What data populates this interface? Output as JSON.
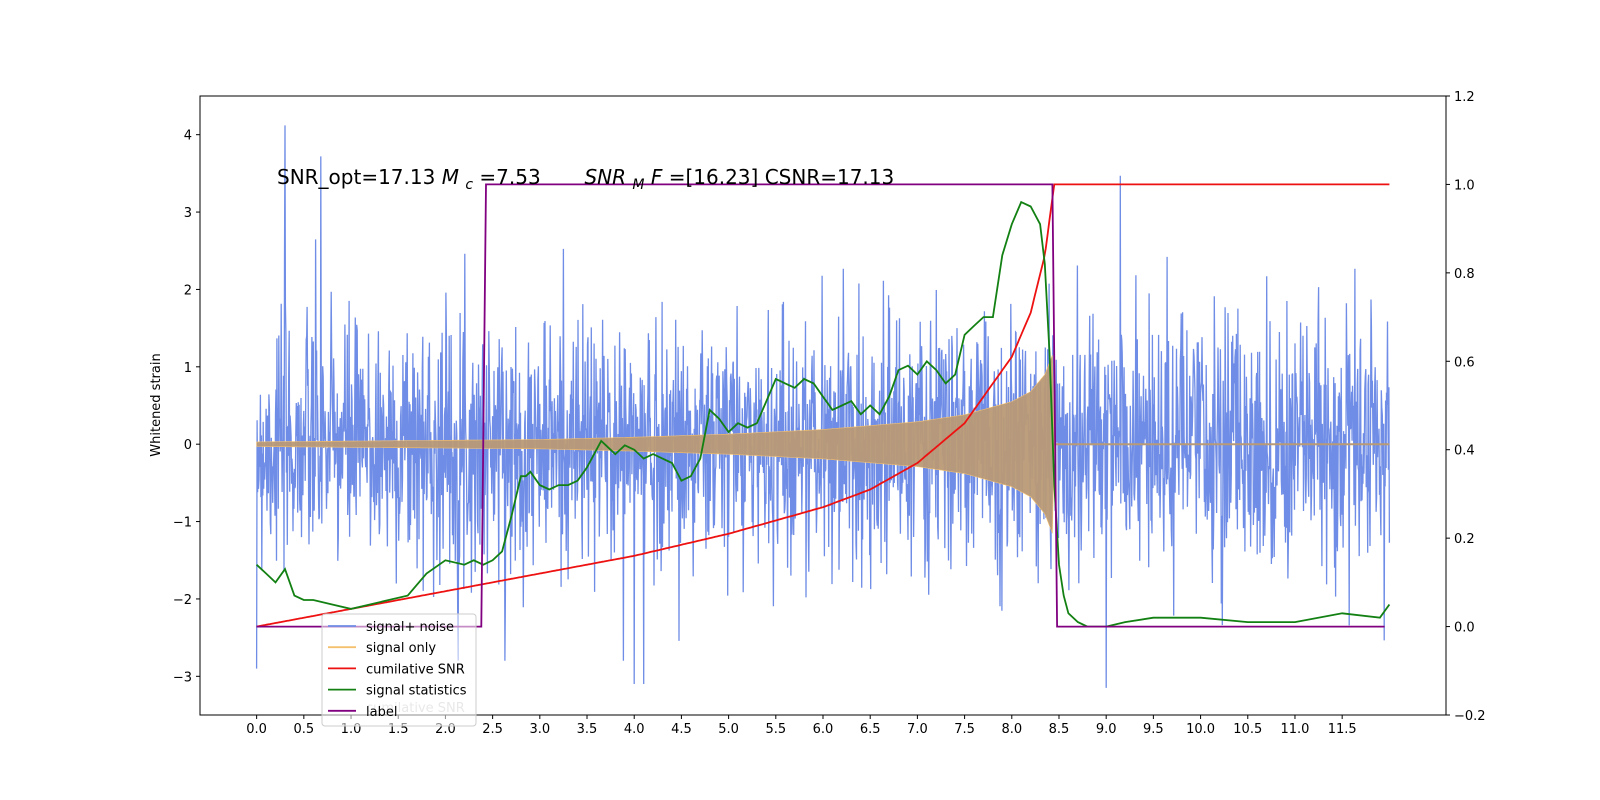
{
  "chart_data": {
    "type": "line",
    "annotation": "SNR_opt=17.13 $M_c$=7.53    $SNR_MF$=[16.23] CSNR=17.13",
    "annotation_parts": {
      "p1": "SNR_opt=17.13 ",
      "p2": "M",
      "p3": "c",
      "p4": "=7.53    ",
      "p5": "SNR",
      "p6": "M",
      "p7": "F",
      "p8": "=[16.23] CSNR=17.13"
    },
    "ylabel": "Whitened strain",
    "xlim": [
      -0.6,
      12.6
    ],
    "ylim": [
      -3.5,
      4.5
    ],
    "y2lim": [
      -0.2,
      1.2
    ],
    "x_ticks": [
      "0.0",
      "0.5",
      "1.0",
      "1.5",
      "2.0",
      "2.5",
      "3.0",
      "3.5",
      "4.0",
      "4.5",
      "5.0",
      "5.5",
      "6.0",
      "6.5",
      "7.0",
      "7.5",
      "8.0",
      "8.5",
      "9.0",
      "9.5",
      "10.0",
      "10.5",
      "11.0",
      "11.5"
    ],
    "y_ticks": [
      "−3",
      "−2",
      "−1",
      "0",
      "1",
      "2",
      "3",
      "4"
    ],
    "y2_ticks": [
      "−0.2",
      "0.0",
      "0.2",
      "0.4",
      "0.6",
      "0.8",
      "1.0",
      "1.2"
    ],
    "grid": false,
    "legend_position": "lower-left",
    "legend": [
      "signal+ noise",
      "signal only",
      "cumilative SNR",
      "signal statistics",
      "label"
    ],
    "legend_overlap_text": "cumilative SNR",
    "colors": {
      "signal_noise": "#6f8de6",
      "signal_only": "#f5c06e",
      "signal_overlap": "#b99a76",
      "cumulative_snr": "#ee1111",
      "signal_statistics": "#128012",
      "label": "#800080"
    },
    "series": [
      {
        "name": "signal+ noise",
        "axis": "left",
        "x_range": [
          0.0,
          12.0
        ],
        "typical_envelope": [
          -1.7,
          1.7
        ],
        "peaks": [
          {
            "x": 0.3,
            "y": 4.12
          },
          {
            "x": 0.68,
            "y": 3.72
          },
          {
            "x": 9.15,
            "y": 3.47
          },
          {
            "x": 4.0,
            "y": -3.1
          },
          {
            "x": 4.1,
            "y": -3.1
          },
          {
            "x": 9.0,
            "y": -3.15
          },
          {
            "x": 0.0,
            "y": -2.9
          }
        ]
      },
      {
        "name": "signal only",
        "axis": "left",
        "x": [
          0.0,
          1.0,
          2.0,
          3.0,
          4.0,
          5.0,
          6.0,
          7.0,
          7.5,
          8.0,
          8.2,
          8.35,
          8.43,
          8.45
        ],
        "envelope": [
          0.03,
          0.04,
          0.05,
          0.06,
          0.09,
          0.13,
          0.19,
          0.29,
          0.38,
          0.55,
          0.68,
          0.9,
          1.15,
          0.0
        ]
      },
      {
        "name": "cumilative SNR",
        "axis": "right",
        "x": [
          0.0,
          0.5,
          1.0,
          2.0,
          3.0,
          4.0,
          5.0,
          6.0,
          6.5,
          7.0,
          7.5,
          8.0,
          8.2,
          8.35,
          8.45,
          12.0
        ],
        "values": [
          0.0,
          0.02,
          0.04,
          0.08,
          0.12,
          0.16,
          0.21,
          0.27,
          0.31,
          0.37,
          0.46,
          0.61,
          0.71,
          0.84,
          1.0,
          1.0
        ]
      },
      {
        "name": "signal statistics",
        "axis": "right",
        "x": [
          0.0,
          0.1,
          0.2,
          0.3,
          0.4,
          0.5,
          0.6,
          0.8,
          1.0,
          1.2,
          1.4,
          1.6,
          1.8,
          2.0,
          2.2,
          2.3,
          2.4,
          2.5,
          2.6,
          2.7,
          2.8,
          2.85,
          2.9,
          3.0,
          3.1,
          3.2,
          3.3,
          3.4,
          3.5,
          3.6,
          3.65,
          3.7,
          3.8,
          3.9,
          4.0,
          4.1,
          4.2,
          4.3,
          4.4,
          4.5,
          4.6,
          4.7,
          4.8,
          4.9,
          5.0,
          5.1,
          5.2,
          5.3,
          5.4,
          5.5,
          5.6,
          5.7,
          5.8,
          5.9,
          6.0,
          6.1,
          6.2,
          6.3,
          6.4,
          6.5,
          6.6,
          6.7,
          6.8,
          6.9,
          7.0,
          7.1,
          7.2,
          7.3,
          7.4,
          7.5,
          7.6,
          7.7,
          7.8,
          7.9,
          8.0,
          8.1,
          8.2,
          8.3,
          8.35,
          8.4,
          8.45,
          8.5,
          8.55,
          8.6,
          8.7,
          8.8,
          9.0,
          9.2,
          9.5,
          10.0,
          10.5,
          11.0,
          11.5,
          11.9,
          12.0
        ],
        "values": [
          0.14,
          0.12,
          0.1,
          0.13,
          0.07,
          0.06,
          0.06,
          0.05,
          0.04,
          0.05,
          0.06,
          0.07,
          0.12,
          0.15,
          0.14,
          0.15,
          0.14,
          0.15,
          0.17,
          0.25,
          0.34,
          0.34,
          0.35,
          0.32,
          0.31,
          0.32,
          0.32,
          0.33,
          0.36,
          0.4,
          0.42,
          0.41,
          0.39,
          0.41,
          0.4,
          0.38,
          0.39,
          0.38,
          0.37,
          0.33,
          0.34,
          0.38,
          0.49,
          0.47,
          0.44,
          0.46,
          0.45,
          0.46,
          0.51,
          0.56,
          0.55,
          0.54,
          0.56,
          0.55,
          0.52,
          0.49,
          0.5,
          0.51,
          0.48,
          0.5,
          0.48,
          0.52,
          0.58,
          0.59,
          0.57,
          0.6,
          0.58,
          0.55,
          0.57,
          0.66,
          0.68,
          0.7,
          0.7,
          0.84,
          0.91,
          0.96,
          0.95,
          0.91,
          0.82,
          0.62,
          0.32,
          0.14,
          0.07,
          0.03,
          0.01,
          0.0,
          0.0,
          0.01,
          0.02,
          0.02,
          0.01,
          0.01,
          0.03,
          0.02,
          0.05
        ]
      },
      {
        "name": "label",
        "axis": "right",
        "x": [
          0.0,
          2.38,
          2.43,
          8.43,
          8.48,
          11.95
        ],
        "values": [
          0.0,
          0.0,
          1.0,
          1.0,
          0.0,
          0.0
        ]
      }
    ]
  }
}
